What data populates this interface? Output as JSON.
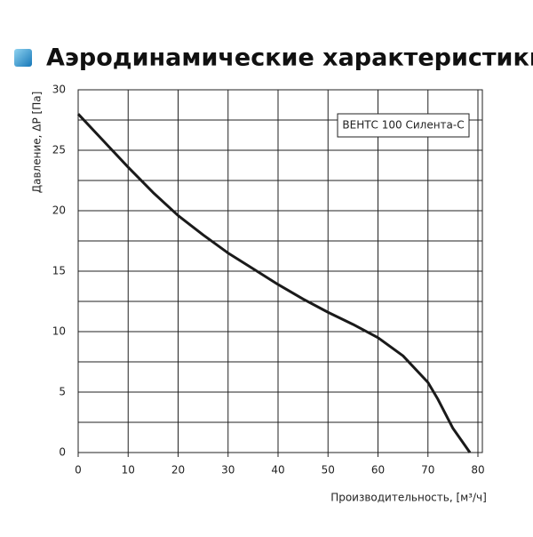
{
  "chart_data": {
    "type": "line",
    "title": "Аэродинамические характеристики",
    "x_label": "Производительность, [м³/ч]",
    "y_label": "Давление, ΔP [Па]",
    "xlim": [
      0,
      80
    ],
    "xticks": [
      0,
      10,
      20,
      30,
      40,
      50,
      60,
      70,
      80
    ],
    "ylim": [
      0,
      30
    ],
    "yticks": [
      0,
      5,
      10,
      15,
      20,
      25,
      30
    ],
    "grid": true,
    "legend_position": "upper right",
    "series": [
      {
        "name": "ВЕНТС 100 Силента-С",
        "color": "#1a1a1a",
        "x": [
          0,
          5,
          10,
          15,
          20,
          25,
          30,
          35,
          40,
          45,
          50,
          55,
          60,
          65,
          70,
          72,
          75,
          78.4
        ],
        "values": [
          28,
          25.8,
          23.6,
          21.5,
          19.6,
          18,
          16.5,
          15.2,
          13.9,
          12.7,
          11.6,
          10.6,
          9.5,
          8,
          5.8,
          4.4,
          2,
          0
        ]
      }
    ]
  }
}
